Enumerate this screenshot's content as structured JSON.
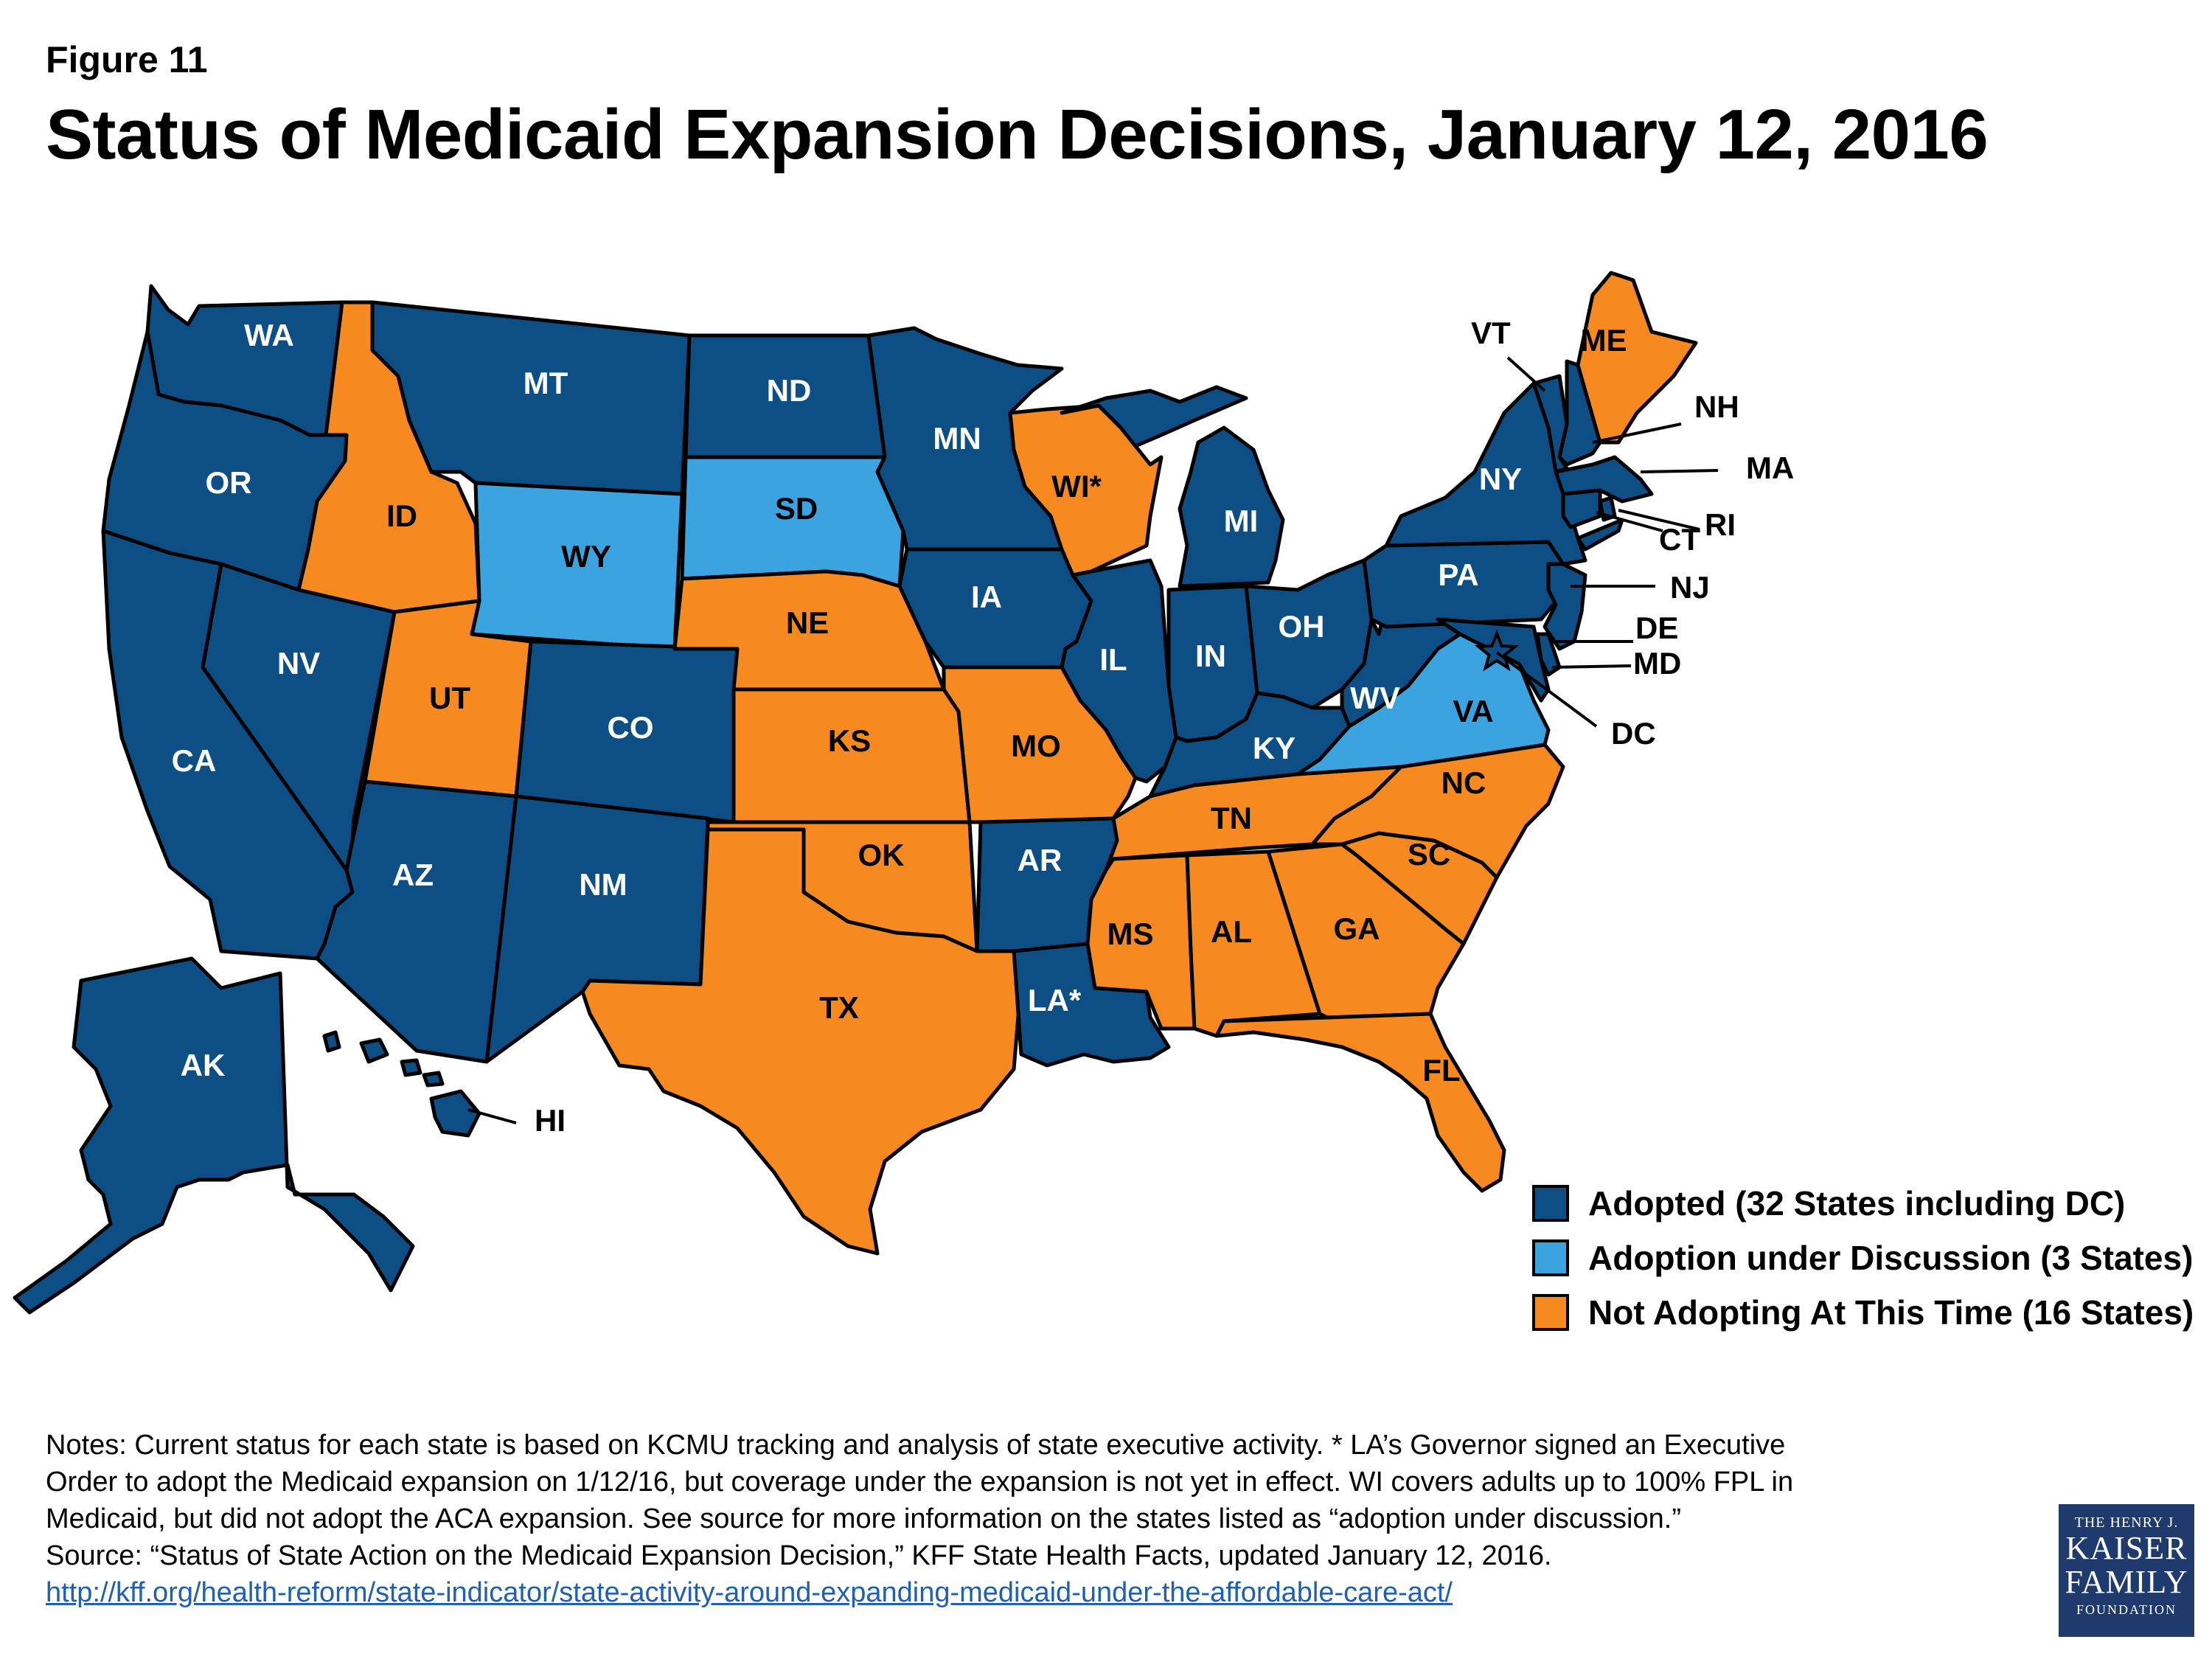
{
  "figure_label": "Figure 11",
  "title": "Status of Medicaid Expansion Decisions, January 12, 2016",
  "colors": {
    "adopted": "#0d4f85",
    "discussion": "#3aa3e0",
    "not_adopting": "#f6891f"
  },
  "legend": [
    {
      "status": "adopted",
      "label": "Adopted (32 States including DC)"
    },
    {
      "status": "discussion",
      "label": "Adoption under Discussion (3 States)"
    },
    {
      "status": "not_adopting",
      "label": "Not Adopting At This Time (16 States)"
    }
  ],
  "states": {
    "WA": {
      "label": "WA",
      "status": "adopted"
    },
    "OR": {
      "label": "OR",
      "status": "adopted"
    },
    "CA": {
      "label": "CA",
      "status": "adopted"
    },
    "NV": {
      "label": "NV",
      "status": "adopted"
    },
    "ID": {
      "label": "ID",
      "status": "not_adopting"
    },
    "MT": {
      "label": "MT",
      "status": "adopted"
    },
    "WY": {
      "label": "WY",
      "status": "discussion"
    },
    "UT": {
      "label": "UT",
      "status": "not_adopting"
    },
    "AZ": {
      "label": "AZ",
      "status": "adopted"
    },
    "CO": {
      "label": "CO",
      "status": "adopted"
    },
    "NM": {
      "label": "NM",
      "status": "adopted"
    },
    "ND": {
      "label": "ND",
      "status": "adopted"
    },
    "SD": {
      "label": "SD",
      "status": "discussion"
    },
    "NE": {
      "label": "NE",
      "status": "not_adopting"
    },
    "KS": {
      "label": "KS",
      "status": "not_adopting"
    },
    "OK": {
      "label": "OK",
      "status": "not_adopting"
    },
    "TX": {
      "label": "TX",
      "status": "not_adopting"
    },
    "MN": {
      "label": "MN",
      "status": "adopted"
    },
    "IA": {
      "label": "IA",
      "status": "adopted"
    },
    "MO": {
      "label": "MO",
      "status": "not_adopting"
    },
    "AR": {
      "label": "AR",
      "status": "adopted"
    },
    "LA": {
      "label": "LA*",
      "status": "adopted"
    },
    "WI": {
      "label": "WI*",
      "status": "not_adopting"
    },
    "IL": {
      "label": "IL",
      "status": "adopted"
    },
    "MI": {
      "label": "MI",
      "status": "adopted"
    },
    "IN": {
      "label": "IN",
      "status": "adopted"
    },
    "OH": {
      "label": "OH",
      "status": "adopted"
    },
    "KY": {
      "label": "KY",
      "status": "adopted"
    },
    "TN": {
      "label": "TN",
      "status": "not_adopting"
    },
    "MS": {
      "label": "MS",
      "status": "not_adopting"
    },
    "AL": {
      "label": "AL",
      "status": "not_adopting"
    },
    "GA": {
      "label": "GA",
      "status": "not_adopting"
    },
    "FL": {
      "label": "FL",
      "status": "not_adopting"
    },
    "SC": {
      "label": "SC",
      "status": "not_adopting"
    },
    "NC": {
      "label": "NC",
      "status": "not_adopting"
    },
    "VA": {
      "label": "VA",
      "status": "discussion"
    },
    "WV": {
      "label": "WV",
      "status": "adopted"
    },
    "PA": {
      "label": "PA",
      "status": "adopted"
    },
    "NY": {
      "label": "NY",
      "status": "adopted"
    },
    "VT": {
      "label": "VT",
      "status": "adopted"
    },
    "NH": {
      "label": "NH",
      "status": "adopted"
    },
    "ME": {
      "label": "ME",
      "status": "not_adopting"
    },
    "MA": {
      "label": "MA",
      "status": "adopted"
    },
    "RI": {
      "label": "RI",
      "status": "adopted"
    },
    "CT": {
      "label": "CT",
      "status": "adopted"
    },
    "NJ": {
      "label": "NJ",
      "status": "adopted"
    },
    "DE": {
      "label": "DE",
      "status": "adopted"
    },
    "MD": {
      "label": "MD",
      "status": "adopted"
    },
    "DC": {
      "label": "DC",
      "status": "adopted"
    },
    "AK": {
      "label": "AK",
      "status": "adopted"
    },
    "HI": {
      "label": "HI",
      "status": "adopted"
    }
  },
  "notes": [
    "Notes: Current status for each state is based on KCMU tracking and analysis of state executive activity. * LA’s Governor signed an Executive",
    "Order to adopt the Medicaid expansion on 1/12/16, but coverage under the expansion is not yet in effect. WI covers adults up to 100% FPL in",
    "Medicaid, but did not adopt the ACA expansion. See source for more information on the states listed as “adoption under discussion.”",
    "Source: “Status of State Action on the Medicaid Expansion Decision,” KFF State Health Facts, updated January 12, 2016."
  ],
  "source_link": "http://kff.org/health-reform/state-indicator/state-activity-around-expanding-medicaid-under-the-affordable-care-act/",
  "logo": {
    "line1": "THE HENRY J.",
    "line2a": "KAISER",
    "line2b": "FAMILY",
    "line3": "FOUNDATION"
  }
}
